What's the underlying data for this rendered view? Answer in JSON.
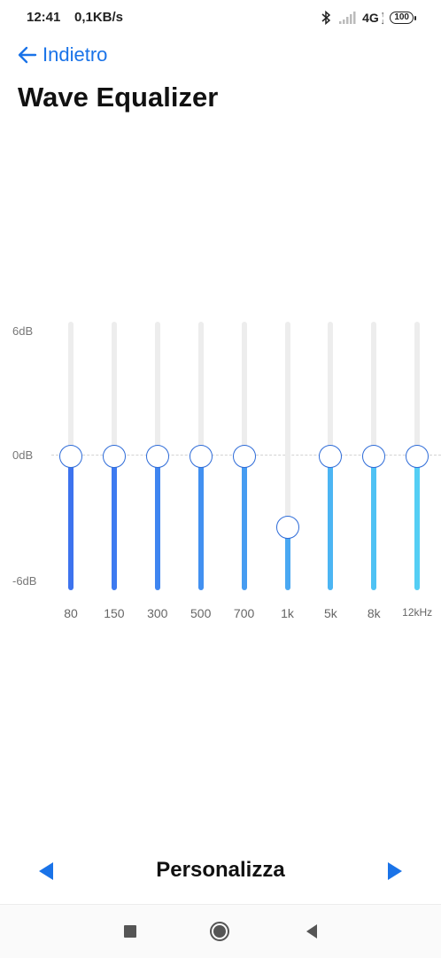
{
  "status_bar": {
    "time": "12:41",
    "net_speed": "0,1KB/s",
    "network": "4G",
    "battery": "100",
    "icons": [
      "bluetooth-icon",
      "signal-icon",
      "data-arrows-icon",
      "battery-icon"
    ]
  },
  "header": {
    "back_label": "Indietro",
    "title": "Wave Equalizer"
  },
  "equalizer": {
    "db_labels": {
      "top": "6dB",
      "mid": "0dB",
      "bottom": "-6dB"
    },
    "range_db": [
      -6,
      6
    ],
    "bands": [
      {
        "label": "80",
        "value_db": 0
      },
      {
        "label": "150",
        "value_db": 0
      },
      {
        "label": "300",
        "value_db": 0
      },
      {
        "label": "500",
        "value_db": 0
      },
      {
        "label": "700",
        "value_db": 0
      },
      {
        "label": "1k",
        "value_db": -3.2
      },
      {
        "label": "5k",
        "value_db": 0
      },
      {
        "label": "8k",
        "value_db": 0
      },
      {
        "label": "12kHz",
        "value_db": 0
      }
    ],
    "fill_colors": [
      "#3d73ee",
      "#3d7af0",
      "#3f85f0",
      "#4290f1",
      "#469cf1",
      "#4aa8f2",
      "#4cb5f3",
      "#4fc2f4",
      "#54cef4"
    ],
    "knob_border_color": "#2d6bd8"
  },
  "preset": {
    "name": "Personalizza",
    "accent_color": "#1a73e8"
  },
  "nav_bar": {
    "buttons": [
      "recents-icon",
      "home-icon",
      "back-icon"
    ]
  }
}
